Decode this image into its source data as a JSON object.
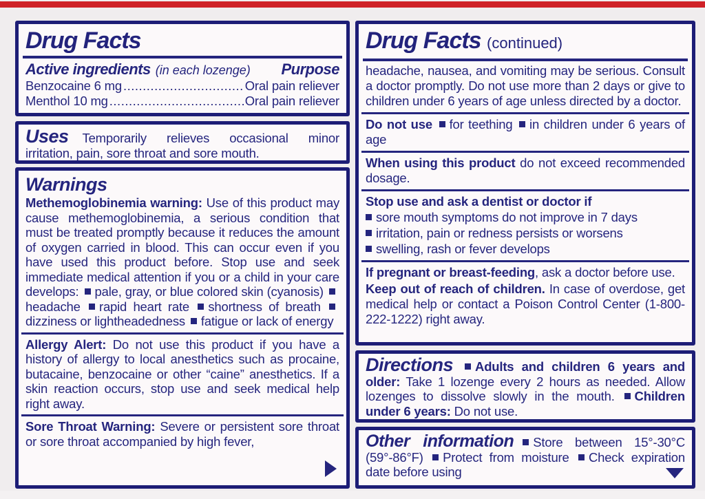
{
  "style": {
    "navy_text": "#25257e",
    "navy_border": "#1d1d76",
    "red_stripe": "#cf2127",
    "page_background": "#f0edee",
    "box_background": "#fcf9fa"
  },
  "icons": {
    "bullet": "square",
    "continued_arrow": "right-triangle",
    "more_info_arrow": "down-triangle"
  },
  "left_column": {
    "ingredients_box": {
      "title": "Drug Facts",
      "active_heading": "Active ingredients",
      "active_note": "(in each lozenge)",
      "purpose_heading": "Purpose",
      "rows": [
        {
          "name": "Benzocaine 6 mg",
          "purpose": "Oral pain reliever"
        },
        {
          "name": "Menthol 10 mg",
          "purpose": "Oral pain reliever"
        }
      ]
    },
    "uses_box": {
      "heading": "Uses",
      "text": "Temporarily relieves occasional minor irritation, pain, sore throat and sore mouth."
    },
    "warnings_box": {
      "heading": "Warnings",
      "methemoglobinemia": {
        "label": "Methemoglobinemia warning:",
        "text": "Use of this product may cause methemoglobinemia, a serious condition that must be treated promptly because it reduces the amount of oxygen carried in blood. This can occur even if you have used this product before. Stop use and seek immediate medical attention if you or a child in your care develops:",
        "bullets": [
          "pale, gray, or blue colored skin (cyanosis)",
          "headache",
          "rapid heart rate",
          "shortness of breath",
          "dizziness or lightheadedness",
          "fatigue or lack of energy"
        ]
      },
      "allergy": {
        "label": "Allergy Alert:",
        "text": "Do not use this product if you have a history of allergy to local anesthetics such as procaine, butacaine, benzocaine or other “caine” anesthetics. If a skin reaction occurs, stop use and seek medical help right away."
      },
      "sore_throat": {
        "label": "Sore Throat Warning:",
        "text": "Severe or persistent sore throat or sore throat accompanied by high fever,"
      }
    }
  },
  "right_column": {
    "continued_box": {
      "title": "Drug Facts",
      "continued_note": "(continued)",
      "intro": "headache, nausea, and vomiting may be serious. Consult a doctor promptly.  Do not use more than 2 days or give to children under 6 years of age unless directed by a doctor.",
      "do_not_use": {
        "label": "Do not use",
        "bullets": [
          "for teething",
          "in children under 6 years of age"
        ]
      },
      "when_using": {
        "label": "When using this product",
        "text": "do not exceed recommended dosage."
      },
      "stop_use": {
        "label": "Stop use and ask a dentist or doctor if",
        "bullets": [
          "sore mouth symptoms do not improve in 7 days",
          "irritation, pain or redness persists or worsens",
          "swelling, rash or fever develops"
        ]
      },
      "pregnant": {
        "label": "If pregnant or breast-feeding",
        "text": ", ask a doctor before use."
      },
      "keep_out": {
        "label": "Keep out of reach of children.",
        "text": "In case of overdose, get medical help or contact a Poison Control Center (1-800-222-1222) right away."
      }
    },
    "directions_box": {
      "heading": "Directions",
      "items": [
        {
          "label": "Adults and children 6 years and older:",
          "text": "Take 1 lozenge every 2 hours as needed. Allow lozenges to dissolve slowly in the mouth."
        },
        {
          "label": "Children under 6 years:",
          "text": "Do not use."
        }
      ]
    },
    "other_box": {
      "heading": "Other information",
      "bullets": [
        "Store between 15°-30°C (59°-86°F)",
        "Protect from moisture",
        "Check expiration date before using"
      ]
    }
  }
}
